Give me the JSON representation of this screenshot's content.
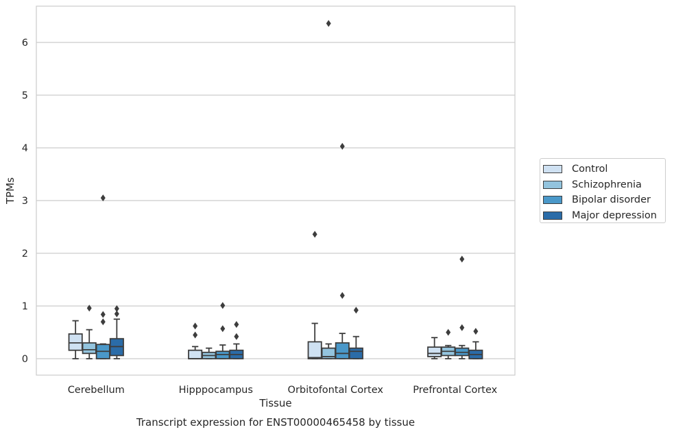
{
  "chart_data": {
    "type": "box",
    "title": "Transcript expression for ENST00000465458 by tissue",
    "xlabel": "Tissue",
    "ylabel": "TPMs",
    "categories": [
      "Cerebellum",
      "Hipppocampus",
      "Orbitofontal Cortex",
      "Prefrontal Cortex"
    ],
    "ylim": [
      -0.3,
      6.7
    ],
    "yticks": [
      0,
      1,
      2,
      3,
      4,
      5,
      6
    ],
    "grid": true,
    "legend_position": "center-right",
    "series": [
      {
        "name": "Control",
        "color": "#cfe1f2",
        "boxes": [
          {
            "whislo": 0.0,
            "q1": 0.16,
            "med": 0.3,
            "q3": 0.47,
            "whishi": 0.72,
            "fliers": []
          },
          {
            "whislo": 0.0,
            "q1": 0.0,
            "med": 0.0,
            "q3": 0.16,
            "whishi": 0.23,
            "fliers": [
              0.45,
              0.62
            ]
          },
          {
            "whislo": 0.0,
            "q1": 0.0,
            "med": 0.02,
            "q3": 0.32,
            "whishi": 0.67,
            "fliers": [
              2.36
            ]
          },
          {
            "whislo": 0.0,
            "q1": 0.04,
            "med": 0.1,
            "q3": 0.22,
            "whishi": 0.4,
            "fliers": []
          }
        ]
      },
      {
        "name": "Schizophrenia",
        "color": "#93c4de",
        "boxes": [
          {
            "whislo": 0.0,
            "q1": 0.1,
            "med": 0.17,
            "q3": 0.3,
            "whishi": 0.55,
            "fliers": [
              0.96
            ]
          },
          {
            "whislo": 0.0,
            "q1": 0.0,
            "med": 0.06,
            "q3": 0.12,
            "whishi": 0.2,
            "fliers": []
          },
          {
            "whislo": 0.0,
            "q1": 0.0,
            "med": 0.04,
            "q3": 0.2,
            "whishi": 0.28,
            "fliers": [
              6.36
            ]
          },
          {
            "whislo": 0.0,
            "q1": 0.06,
            "med": 0.14,
            "q3": 0.22,
            "whishi": 0.25,
            "fliers": [
              0.5
            ]
          }
        ]
      },
      {
        "name": "Bipolar disorder",
        "color": "#4a98c9",
        "boxes": [
          {
            "whislo": 0.0,
            "q1": 0.0,
            "med": 0.14,
            "q3": 0.27,
            "whishi": 0.28,
            "fliers": [
              0.7,
              0.84,
              3.05
            ]
          },
          {
            "whislo": 0.0,
            "q1": 0.0,
            "med": 0.08,
            "q3": 0.14,
            "whishi": 0.26,
            "fliers": [
              0.57,
              1.01
            ]
          },
          {
            "whislo": 0.0,
            "q1": 0.0,
            "med": 0.1,
            "q3": 0.3,
            "whishi": 0.48,
            "fliers": [
              1.2,
              4.03
            ]
          },
          {
            "whislo": 0.0,
            "q1": 0.06,
            "med": 0.12,
            "q3": 0.2,
            "whishi": 0.25,
            "fliers": [
              0.59,
              1.89
            ]
          }
        ]
      },
      {
        "name": "Major depression",
        "color": "#2b6ca8",
        "boxes": [
          {
            "whislo": 0.0,
            "q1": 0.06,
            "med": 0.23,
            "q3": 0.38,
            "whishi": 0.75,
            "fliers": [
              0.85,
              0.95
            ]
          },
          {
            "whislo": 0.0,
            "q1": 0.0,
            "med": 0.08,
            "q3": 0.16,
            "whishi": 0.28,
            "fliers": [
              0.42,
              0.65
            ]
          },
          {
            "whislo": 0.0,
            "q1": 0.0,
            "med": 0.14,
            "q3": 0.2,
            "whishi": 0.42,
            "fliers": [
              0.92
            ]
          },
          {
            "whislo": 0.0,
            "q1": 0.0,
            "med": 0.08,
            "q3": 0.16,
            "whishi": 0.32,
            "fliers": [
              0.52
            ]
          }
        ]
      }
    ]
  }
}
